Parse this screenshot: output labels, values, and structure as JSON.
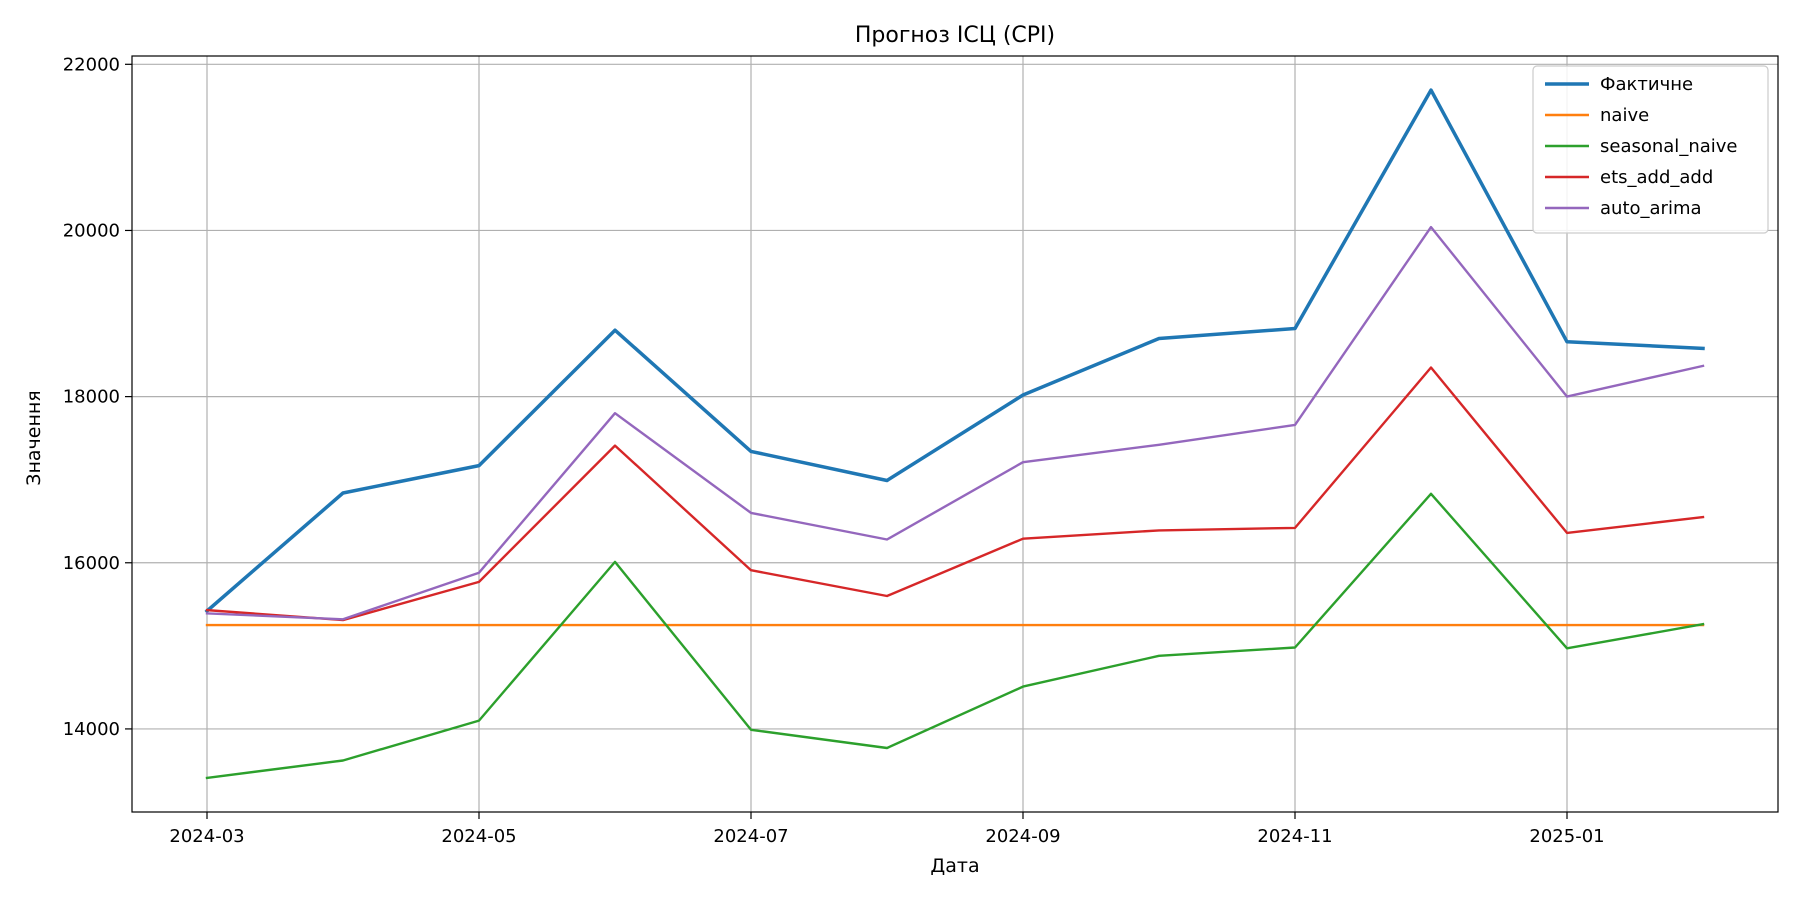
{
  "chart_data": {
    "type": "line",
    "title": "Прогноз ІСЦ (CPI)",
    "xlabel": "Дата",
    "ylabel": "Значення",
    "x": [
      "2024-03",
      "2024-04",
      "2024-05",
      "2024-06",
      "2024-07",
      "2024-08",
      "2024-09",
      "2024-10",
      "2024-11",
      "2024-12",
      "2025-01",
      "2025-02"
    ],
    "x_tick_labels": [
      "2024-03",
      "2024-05",
      "2024-07",
      "2024-09",
      "2024-11",
      "2025-01"
    ],
    "y_ticks": [
      14000,
      16000,
      18000,
      20000,
      22000
    ],
    "ylim": [
      13000,
      22100
    ],
    "grid": true,
    "legend_position": "top-right",
    "series": [
      {
        "name": "Фактичне",
        "color": "#1f77b4",
        "bold": true,
        "values": [
          15420,
          16840,
          17170,
          18800,
          17340,
          16990,
          18020,
          18700,
          18820,
          21690,
          18660,
          18580
        ]
      },
      {
        "name": "naive",
        "color": "#ff7f0e",
        "values": [
          15250,
          15250,
          15250,
          15250,
          15250,
          15250,
          15250,
          15250,
          15250,
          15250,
          15250,
          15250
        ]
      },
      {
        "name": "seasonal_naive",
        "color": "#2ca02c",
        "values": [
          13410,
          13620,
          14100,
          16010,
          13990,
          13770,
          14510,
          14880,
          14980,
          16830,
          14970,
          15260
        ]
      },
      {
        "name": "ets_add_add",
        "color": "#d62728",
        "values": [
          15430,
          15310,
          15770,
          17410,
          15910,
          15600,
          16290,
          16390,
          16420,
          18350,
          16360,
          16550
        ]
      },
      {
        "name": "auto_arima",
        "color": "#9467bd",
        "values": [
          15390,
          15320,
          15880,
          17800,
          16600,
          16280,
          17210,
          17420,
          17660,
          20040,
          18000,
          18370
        ]
      }
    ]
  }
}
